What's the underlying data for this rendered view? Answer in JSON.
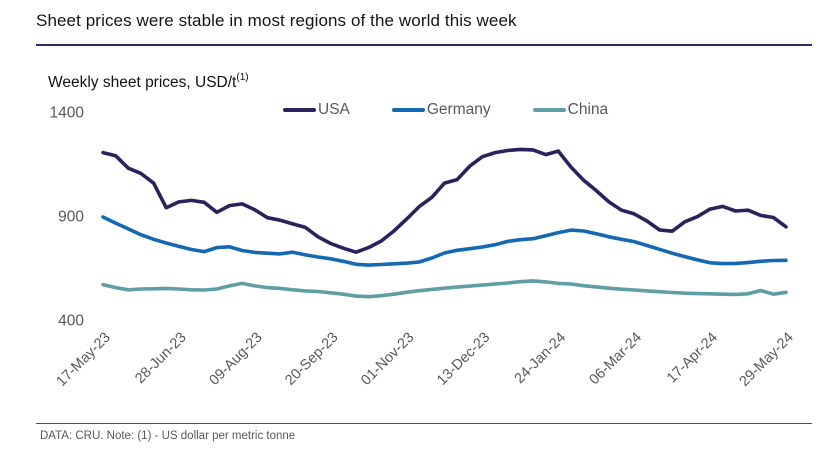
{
  "title": "Sheet prices were stable in most regions of the world this week",
  "chart": {
    "subtitle": "Weekly sheet prices, USD/t",
    "subtitle_superscript": "(1)"
  },
  "footer": {
    "note": "DATA: CRU. Note: (1) - US dollar per metric tonne"
  },
  "colors": {
    "divider_navy": "#2c2a5e",
    "axis_text": "#595959",
    "usa_line": "#29235c",
    "germany_line": "#1569b3",
    "china_line": "#5f9ea4"
  },
  "chart_data": {
    "type": "line",
    "title": "Weekly sheet prices, USD/t(1)",
    "unit": "US dollar per metric tonne",
    "grid": false,
    "legend_position": "top",
    "ylim": [
      400,
      1400
    ],
    "y_ticks": [
      1400,
      900,
      400
    ],
    "x_tick_labels": [
      "17-May-23",
      "28-Jun-23",
      "09-Aug-23",
      "20-Sep-23",
      "01-Nov-23",
      "13-Dec-23",
      "24-Jan-24",
      "06-Mar-24",
      "17-Apr-24",
      "29-May-24"
    ],
    "x_tick_week_indices": [
      0,
      6,
      12,
      18,
      24,
      30,
      36,
      42,
      48,
      54
    ],
    "n_points": 55,
    "x_frequency": "weekly",
    "series": [
      {
        "name": "USA",
        "color": "#29235c",
        "values": [
          1205,
          1190,
          1130,
          1105,
          1058,
          940,
          968,
          975,
          966,
          918,
          950,
          958,
          930,
          892,
          880,
          862,
          845,
          800,
          768,
          745,
          726,
          748,
          780,
          828,
          885,
          945,
          990,
          1058,
          1075,
          1140,
          1185,
          1205,
          1215,
          1220,
          1218,
          1195,
          1212,
          1135,
          1072,
          1022,
          968,
          928,
          910,
          876,
          833,
          827,
          872,
          897,
          933,
          946,
          924,
          928,
          903,
          893,
          848
        ]
      },
      {
        "name": "Germany",
        "color": "#1569b3",
        "values": [
          895,
          866,
          838,
          810,
          788,
          770,
          754,
          739,
          729,
          748,
          752,
          734,
          725,
          721,
          718,
          726,
          713,
          703,
          694,
          682,
          668,
          664,
          667,
          670,
          673,
          679,
          698,
          722,
          735,
          743,
          751,
          762,
          778,
          786,
          791,
          805,
          820,
          832,
          828,
          815,
          800,
          788,
          777,
          758,
          740,
          721,
          705,
          689,
          675,
          671,
          672,
          676,
          682,
          686,
          687
        ]
      },
      {
        "name": "China",
        "color": "#5f9ea4",
        "values": [
          570,
          556,
          545,
          549,
          550,
          552,
          549,
          545,
          544,
          549,
          564,
          576,
          564,
          556,
          552,
          545,
          540,
          537,
          531,
          524,
          515,
          512,
          517,
          524,
          533,
          541,
          547,
          553,
          558,
          563,
          568,
          573,
          578,
          584,
          588,
          583,
          576,
          573,
          565,
          559,
          553,
          548,
          544,
          540,
          536,
          532,
          529,
          527,
          526,
          524,
          523,
          526,
          542,
          524,
          533
        ]
      }
    ]
  }
}
